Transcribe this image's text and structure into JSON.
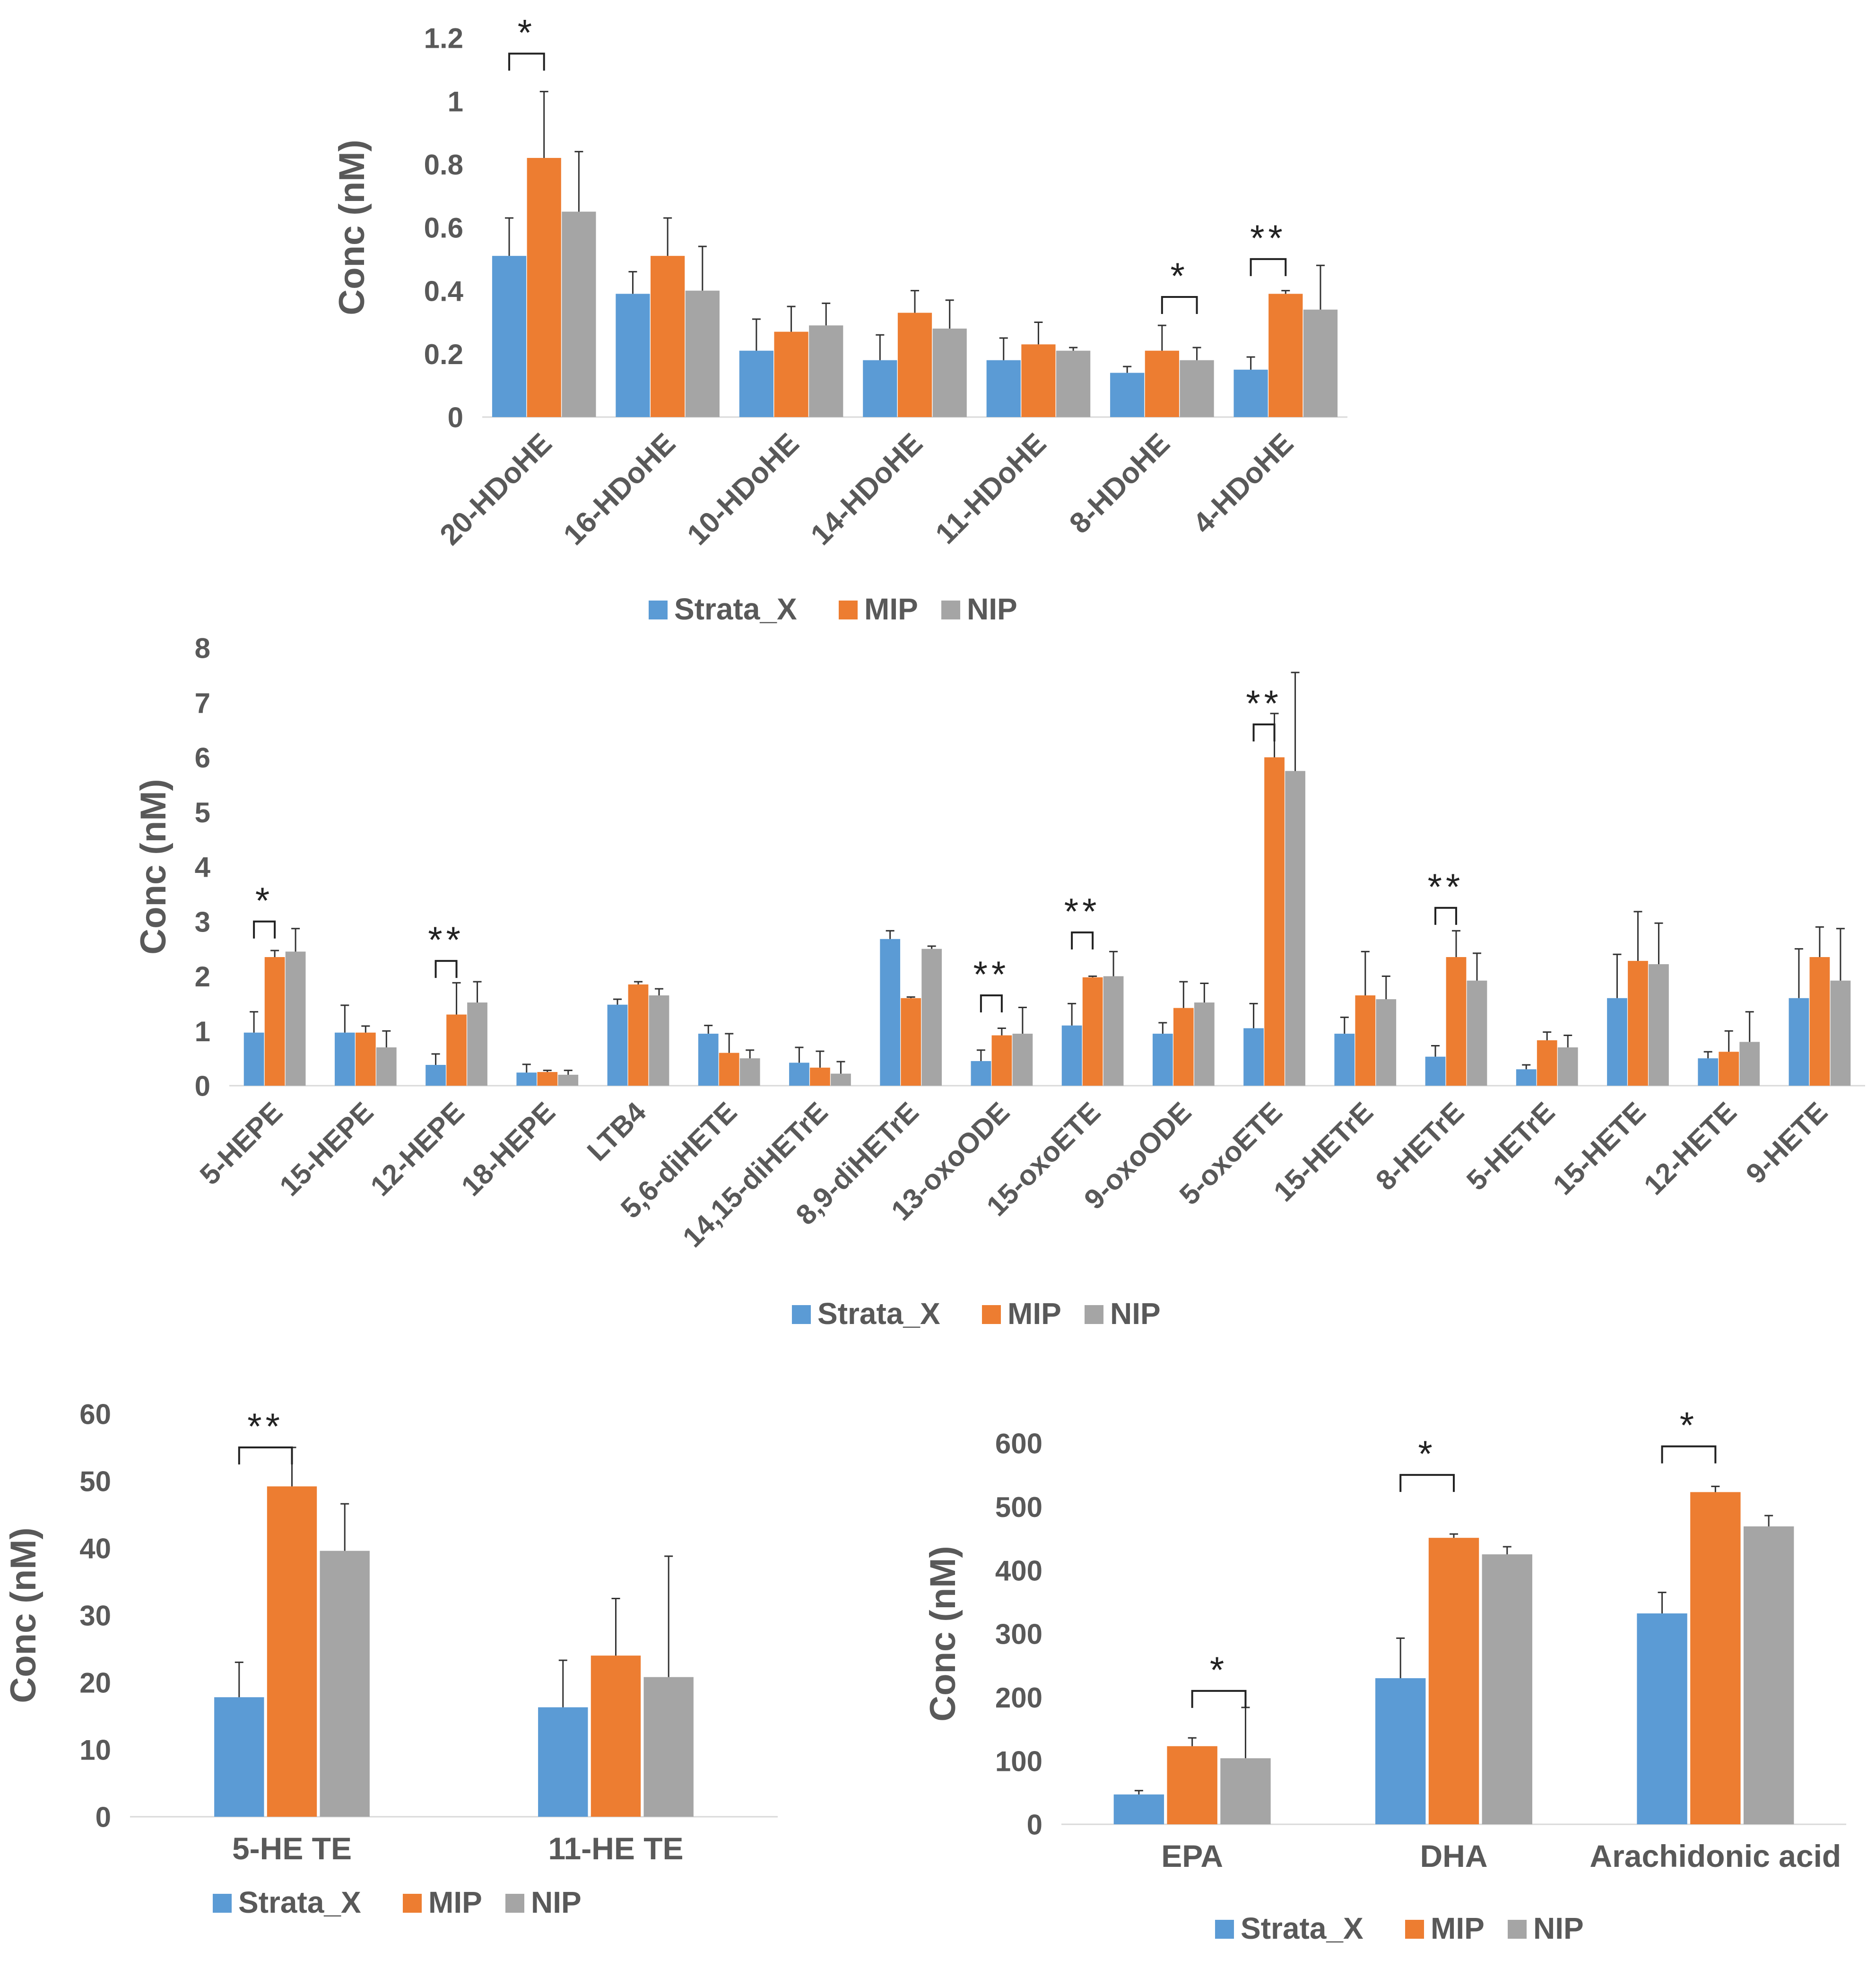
{
  "colors": {
    "Strata_X": "#5b9bd5",
    "MIP": "#ed7d31",
    "NIP": "#a5a5a5",
    "axis": "#d9d9d9",
    "text": "#595959",
    "sig": "#222222"
  },
  "chart_data": [
    {
      "id": "panel-a",
      "type": "bar",
      "ylabel": "Conc (nM)",
      "ylim": [
        0,
        1.2
      ],
      "yticks": [
        0,
        0.2,
        0.4,
        0.6,
        0.8,
        1,
        1.2
      ],
      "ytick_labels": [
        "0",
        "0.2",
        "0.4",
        "0.6",
        "0.8",
        "1",
        "1.2"
      ],
      "categories": [
        "20-HDoHE",
        "16-HDoHE",
        "10-HDoHE",
        "14-HDoHE",
        "11-HDoHE",
        "8-HDoHE",
        "4-HDoHE"
      ],
      "series": [
        {
          "name": "Strata_X",
          "values": [
            0.51,
            0.39,
            0.21,
            0.18,
            0.18,
            0.14,
            0.15
          ],
          "errors": [
            0.12,
            0.07,
            0.1,
            0.08,
            0.07,
            0.02,
            0.04
          ]
        },
        {
          "name": "MIP",
          "values": [
            0.82,
            0.51,
            0.27,
            0.33,
            0.23,
            0.21,
            0.39
          ],
          "errors": [
            0.21,
            0.12,
            0.08,
            0.07,
            0.07,
            0.08,
            0.01
          ]
        },
        {
          "name": "NIP",
          "values": [
            0.65,
            0.4,
            0.29,
            0.28,
            0.21,
            0.18,
            0.34
          ],
          "errors": [
            0.19,
            0.14,
            0.07,
            0.09,
            0.01,
            0.04,
            0.14
          ]
        }
      ],
      "annotations": [
        {
          "category_index": 0,
          "from": "Strata_X",
          "to": "MIP",
          "level": 1.15,
          "label": "*"
        },
        {
          "category_index": 5,
          "from": "MIP",
          "to": "NIP",
          "level": 0.38,
          "label": "*"
        },
        {
          "category_index": 6,
          "from": "Strata_X",
          "to": "MIP",
          "level": 0.5,
          "label": "**"
        }
      ],
      "legend": {
        "position": "bottom",
        "labels": [
          "Strata_X",
          "MIP",
          "NIP"
        ]
      }
    },
    {
      "id": "panel-b",
      "type": "bar",
      "ylabel": "Conc (nM)",
      "ylim": [
        0,
        8
      ],
      "yticks": [
        0,
        1,
        2,
        3,
        4,
        5,
        6,
        7,
        8
      ],
      "ytick_labels": [
        "0",
        "1",
        "2",
        "3",
        "4",
        "5",
        "6",
        "7",
        "8"
      ],
      "categories": [
        "5-HEPE",
        "15-HEPE",
        "12-HEPE",
        "18-HEPE",
        "LTB4",
        "5,6-diHETE",
        "14,15-diHETrE",
        "8,9-diHETrE",
        "13-oxoODE",
        "15-oxoETE",
        "9-oxoODE",
        "5-oxoETE",
        "15-HETrE",
        "8-HETrE",
        "5-HETrE",
        "15-HETE",
        "12-HETE",
        "9-HETE"
      ],
      "series": [
        {
          "name": "Strata_X",
          "values": [
            0.97,
            0.97,
            0.38,
            0.24,
            1.48,
            0.95,
            0.42,
            2.68,
            0.45,
            1.1,
            0.95,
            1.05,
            0.95,
            0.53,
            0.3,
            1.6,
            0.5,
            1.6
          ],
          "errors": [
            0.38,
            0.5,
            0.2,
            0.15,
            0.1,
            0.15,
            0.28,
            0.15,
            0.2,
            0.4,
            0.2,
            0.45,
            0.3,
            0.2,
            0.08,
            0.8,
            0.12,
            0.9
          ]
        },
        {
          "name": "MIP",
          "values": [
            2.35,
            0.97,
            1.3,
            0.25,
            1.85,
            0.6,
            0.33,
            1.6,
            0.92,
            1.98,
            1.42,
            6.0,
            1.65,
            2.35,
            0.83,
            2.28,
            0.62,
            2.35
          ]
        },
        {
          "name": "NIP",
          "values": [
            2.45,
            0.7,
            1.52,
            0.2,
            1.65,
            0.5,
            0.22,
            2.5,
            0.95,
            2.0,
            1.52,
            5.75,
            1.58,
            1.92,
            0.7,
            2.22,
            0.8,
            1.92
          ],
          "errors": [
            0.42,
            0.3,
            0.38,
            0.08,
            0.12,
            0.15,
            0.22,
            0.05,
            0.48,
            0.45,
            0.35,
            1.8,
            0.42,
            0.5,
            0.22,
            0.75,
            0.55,
            0.95
          ]
        }
      ],
      "mip_errors": [
        0.12,
        0.12,
        0.58,
        0.03,
        0.05,
        0.35,
        0.3,
        0.02,
        0.13,
        0.02,
        0.48,
        0.8,
        0.8,
        0.48,
        0.15,
        0.9,
        0.38,
        0.55
      ],
      "annotations": [
        {
          "category_index": 0,
          "from": "Strata_X",
          "to": "MIP",
          "level": 3.0,
          "label": "*"
        },
        {
          "category_index": 2,
          "from": "Strata_X",
          "to": "MIP",
          "level": 2.28,
          "label": "**"
        },
        {
          "category_index": 8,
          "from": "Strata_X",
          "to": "MIP",
          "level": 1.65,
          "label": "**"
        },
        {
          "category_index": 9,
          "from": "Strata_X",
          "to": "MIP",
          "level": 2.8,
          "label": "**"
        },
        {
          "category_index": 11,
          "from": "Strata_X",
          "to": "MIP",
          "level": 6.6,
          "label": "**"
        },
        {
          "category_index": 13,
          "from": "Strata_X",
          "to": "MIP",
          "level": 3.25,
          "label": "**"
        }
      ],
      "legend": {
        "position": "bottom",
        "labels": [
          "Strata_X",
          "MIP",
          "NIP"
        ]
      }
    },
    {
      "id": "panel-c",
      "type": "bar",
      "ylabel": "Conc (nM)",
      "ylim": [
        0,
        60
      ],
      "yticks": [
        0,
        10,
        20,
        30,
        40,
        50,
        60
      ],
      "ytick_labels": [
        "0",
        "10",
        "20",
        "30",
        "40",
        "50",
        "60"
      ],
      "categories": [
        "5-HE TE",
        "11-HE TE"
      ],
      "series": [
        {
          "name": "Strata_X",
          "values": [
            17.8,
            16.3
          ],
          "errors": [
            5.2,
            7.0
          ]
        },
        {
          "name": "MIP",
          "values": [
            49.2,
            24.0
          ],
          "errors": [
            5.8,
            8.5
          ]
        },
        {
          "name": "NIP",
          "values": [
            39.6,
            20.8
          ],
          "errors": [
            7.0,
            18.0
          ]
        }
      ],
      "annotations": [
        {
          "category_index": 0,
          "from": "Strata_X",
          "to": "MIP",
          "level": 55.0,
          "label": "**"
        }
      ],
      "legend": {
        "position": "bottom",
        "labels": [
          "Strata_X",
          "MIP",
          "NIP"
        ]
      }
    },
    {
      "id": "panel-d",
      "type": "bar",
      "ylabel": "Conc (nM)",
      "ylim": [
        0,
        600
      ],
      "yticks": [
        0,
        100,
        200,
        300,
        400,
        500,
        600
      ],
      "ytick_labels": [
        "0",
        "100",
        "200",
        "300",
        "400",
        "500",
        "600"
      ],
      "categories": [
        "EPA",
        "DHA",
        "Arachidonic acid"
      ],
      "series": [
        {
          "name": "Strata_X",
          "values": [
            47,
            230,
            332
          ],
          "errors": [
            6,
            63,
            33
          ]
        },
        {
          "name": "MIP",
          "values": [
            123,
            451,
            523
          ],
          "errors": [
            13,
            6,
            9
          ]
        },
        {
          "name": "NIP",
          "values": [
            104,
            425,
            469
          ],
          "errors": [
            80,
            12,
            17
          ]
        }
      ],
      "annotations": [
        {
          "category_index": 0,
          "from": "MIP",
          "to": "NIP",
          "level": 210,
          "label": "*"
        },
        {
          "category_index": 1,
          "from": "Strata_X",
          "to": "MIP",
          "level": 550,
          "label": "*"
        },
        {
          "category_index": 2,
          "from": "Strata_X",
          "to": "MIP",
          "level": 595,
          "label": "*"
        }
      ],
      "legend": {
        "position": "bottom",
        "labels": [
          "Strata_X",
          "MIP",
          "NIP"
        ]
      }
    }
  ]
}
